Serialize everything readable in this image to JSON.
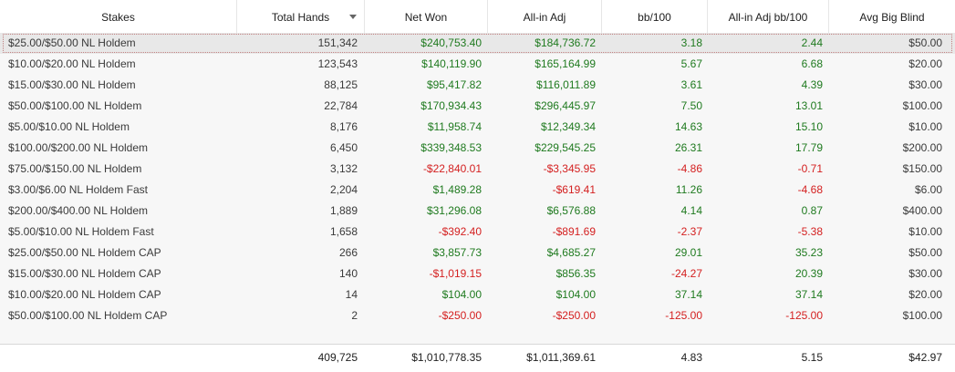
{
  "columns": [
    "Stakes",
    "Total Hands",
    "Net Won",
    "All-in Adj",
    "bb/100",
    "All-in Adj bb/100",
    "Avg Big Blind"
  ],
  "colors": {
    "positive": "#1f7a1f",
    "negative": "#d42020"
  },
  "sort_icon": "chevron-down-icon",
  "rows": [
    [
      "$25.00/$50.00 NL Holdem",
      "151,342",
      "$240,753.40",
      "$184,736.72",
      "3.18",
      "2.44",
      "$50.00"
    ],
    [
      "$10.00/$20.00 NL Holdem",
      "123,543",
      "$140,119.90",
      "$165,164.99",
      "5.67",
      "6.68",
      "$20.00"
    ],
    [
      "$15.00/$30.00 NL Holdem",
      "88,125",
      "$95,417.82",
      "$116,011.89",
      "3.61",
      "4.39",
      "$30.00"
    ],
    [
      "$50.00/$100.00 NL Holdem",
      "22,784",
      "$170,934.43",
      "$296,445.97",
      "7.50",
      "13.01",
      "$100.00"
    ],
    [
      "$5.00/$10.00 NL Holdem",
      "8,176",
      "$11,958.74",
      "$12,349.34",
      "14.63",
      "15.10",
      "$10.00"
    ],
    [
      "$100.00/$200.00 NL Holdem",
      "6,450",
      "$339,348.53",
      "$229,545.25",
      "26.31",
      "17.79",
      "$200.00"
    ],
    [
      "$75.00/$150.00 NL Holdem",
      "3,132",
      "-$22,840.01",
      "-$3,345.95",
      "-4.86",
      "-0.71",
      "$150.00"
    ],
    [
      "$3.00/$6.00 NL Holdem Fast",
      "2,204",
      "$1,489.28",
      "-$619.41",
      "11.26",
      "-4.68",
      "$6.00"
    ],
    [
      "$200.00/$400.00 NL Holdem",
      "1,889",
      "$31,296.08",
      "$6,576.88",
      "4.14",
      "0.87",
      "$400.00"
    ],
    [
      "$5.00/$10.00 NL Holdem Fast",
      "1,658",
      "-$392.40",
      "-$891.69",
      "-2.37",
      "-5.38",
      "$10.00"
    ],
    [
      "$25.00/$50.00 NL Holdem CAP",
      "266",
      "$3,857.73",
      "$4,685.27",
      "29.01",
      "35.23",
      "$50.00"
    ],
    [
      "$15.00/$30.00 NL Holdem CAP",
      "140",
      "-$1,019.15",
      "$856.35",
      "-24.27",
      "20.39",
      "$30.00"
    ],
    [
      "$10.00/$20.00 NL Holdem CAP",
      "14",
      "$104.00",
      "$104.00",
      "37.14",
      "37.14",
      "$20.00"
    ],
    [
      "$50.00/$100.00 NL Holdem CAP",
      "2",
      "-$250.00",
      "-$250.00",
      "-125.00",
      "-125.00",
      "$100.00"
    ]
  ],
  "selected_row": 0,
  "totals": [
    "",
    "409,725",
    "$1,010,778.35",
    "$1,011,369.61",
    "4.83",
    "5.15",
    "$42.97"
  ]
}
